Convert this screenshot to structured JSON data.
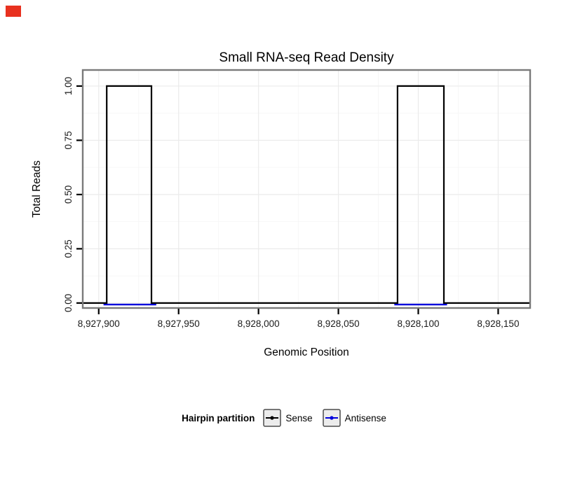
{
  "page": {
    "background": "#ffffff",
    "marker_color": "#e8311f"
  },
  "chart_data": {
    "type": "line",
    "title": "Small RNA-seq Read Density",
    "xlabel": "Genomic Position",
    "ylabel": "Total Reads",
    "x_domain": [
      8927890,
      8928170
    ],
    "y_domain": [
      -0.023,
      1.074
    ],
    "x_ticks": [
      8927900,
      8927950,
      8928000,
      8928050,
      8928100,
      8928150
    ],
    "x_tick_labels": [
      "8,927,900",
      "8,927,950",
      "8,928,000",
      "8,928,050",
      "8,928,100",
      "8,928,150"
    ],
    "y_ticks": [
      0,
      0.25,
      0.5,
      0.75,
      1
    ],
    "y_tick_labels": [
      "0.00",
      "0.25",
      "0.50",
      "0.75",
      "1.00"
    ],
    "grid": {
      "major_color": "#ebebeb",
      "minor_color": "#f5f5f5"
    },
    "panel_border_color": "#7a7a7a",
    "axis_tick_color": "#000000",
    "tick_label_color": "#1a1a1a",
    "legend_title": "Hairpin partition",
    "legend_position": "bottom",
    "legend_key_fill": "#ececec",
    "legend_key_border": "#4d4d4d",
    "series": [
      {
        "name": "Sense",
        "color": "#000000",
        "render": "step",
        "points": [
          [
            8927890,
            0
          ],
          [
            8927905,
            0
          ],
          [
            8927905,
            1
          ],
          [
            8927933,
            1
          ],
          [
            8927933,
            0
          ],
          [
            8928087,
            0
          ],
          [
            8928087,
            1
          ],
          [
            8928116,
            1
          ],
          [
            8928116,
            0
          ],
          [
            8928170,
            0
          ]
        ]
      },
      {
        "name": "Antisense",
        "color": "#0000dd",
        "render": "segments",
        "segments": [
          [
            [
              8927903,
              0
            ],
            [
              8927936,
              0
            ]
          ],
          [
            [
              8928085,
              0
            ],
            [
              8928118,
              0
            ]
          ]
        ]
      }
    ]
  }
}
